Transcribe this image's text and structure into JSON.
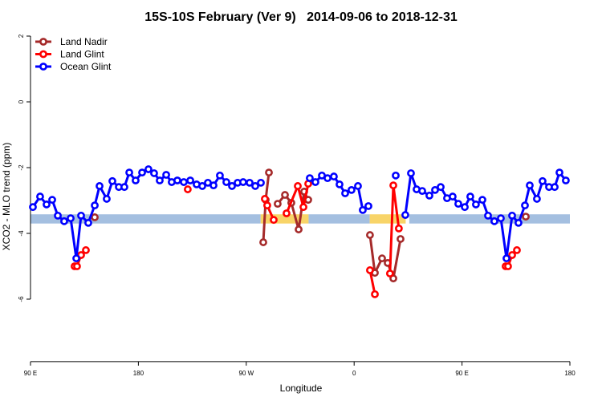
{
  "chart_data": {
    "type": "line",
    "title": "15S-10S February (Ver 9)   2014-09-06 to 2018-12-31",
    "x_label": "Longitude",
    "y_label": "XCO2 - MLO trend (ppm)",
    "xlim": [
      90,
      540
    ],
    "ylim": [
      -7.9,
      2.25
    ],
    "xticks": [
      {
        "value": 90,
        "label": "90 E"
      },
      180,
      {
        "value": 270,
        "label": "90 W"
      },
      {
        "value": 360,
        "label": "0"
      },
      {
        "value": 450,
        "label": "90 E"
      },
      {
        "value": 540,
        "label": "180"
      }
    ],
    "yticks": [
      2,
      0,
      -2,
      -4,
      -6
    ],
    "legend": "top-left",
    "band_y": [
      -3.7,
      -3.42
    ],
    "bands": [
      {
        "from": 90,
        "to": 282,
        "color": "#a4bfe0"
      },
      {
        "from": 282,
        "to": 322,
        "color": "#f8d468"
      },
      {
        "from": 322,
        "to": 373,
        "color": "#a4bfe0"
      },
      {
        "from": 373,
        "to": 403,
        "color": "#f8d468"
      },
      {
        "from": 406,
        "to": 540,
        "color": "#a4bfe0"
      }
    ],
    "series": [
      {
        "name": "Land Nadir",
        "color": "#a52a2a",
        "x": [
          143.6,
          200,
          284.2,
          286.2,
          288.9,
          290,
          296.2,
          302.3,
          307.6,
          313.7,
          318.3,
          321.7,
          330,
          373.2,
          377.3,
          383.3,
          388.0,
          392.7,
          398.7,
          450,
          503.2
        ],
        "values": [
          -3.51,
          null,
          -4.27,
          -2.98,
          -2.15,
          null,
          -3.1,
          -2.83,
          -3.07,
          -3.88,
          -2.73,
          -2.98,
          null,
          -4.05,
          -5.2,
          -4.76,
          -4.9,
          -5.37,
          -4.17,
          null,
          -3.49
        ]
      },
      {
        "name": "Land Glint",
        "color": "#ff0000",
        "x": [
          126.8,
          128.8,
          132.2,
          136.2,
          180,
          221.2,
          250,
          285.5,
          287.5,
          292.9,
          298,
          303.6,
          313.0,
          317.7,
          321.7,
          350,
          373.2,
          377.3,
          383,
          389.9,
          392.7,
          397.3,
          450,
          486.4,
          488.4,
          491.8,
          495.8
        ],
        "values": [
          -5.0,
          -5.0,
          -4.66,
          -4.51,
          null,
          -2.66,
          null,
          -2.95,
          -3.15,
          -3.59,
          null,
          -3.39,
          -2.56,
          -3.2,
          -2.49,
          null,
          -5.12,
          -5.85,
          null,
          -5.22,
          -2.54,
          -3.85,
          null,
          -5.0,
          -5.0,
          -4.66,
          -4.51
        ]
      },
      {
        "name": "Ocean Glint",
        "color": "#0000ff",
        "x": [
          92.0,
          98.0,
          103.4,
          108.1,
          112.8,
          118.1,
          123.5,
          128.2,
          132.2,
          138.2,
          143.6,
          147.6,
          153.6,
          158.3,
          163.7,
          168.3,
          172.4,
          177.7,
          183.1,
          188.4,
          193.1,
          197.8,
          203.2,
          207.8,
          212.5,
          217.9,
          223.3,
          228.6,
          233.3,
          238.0,
          242.7,
          248.0,
          253.4,
          258.1,
          262.8,
          267.4,
          272.8,
          277.5,
          282.2,
          300,
          323.0,
          327.7,
          333.1,
          337.8,
          343.1,
          347.8,
          352.5,
          357.8,
          363.2,
          367.2,
          371.9,
          385,
          394.7,
          400,
          402.7,
          407.4,
          412.1,
          416.8,
          422.8,
          427.5,
          432.2,
          437.5,
          442.2,
          446.9,
          452.3,
          456.9,
          461.6,
          467.0,
          471.7,
          477.0,
          482.4,
          487.1,
          491.8,
          497.1,
          502.5,
          506.5,
          512.5,
          517.2,
          522.6,
          527.3,
          531.3,
          536.6
        ],
        "values": [
          -3.2,
          -2.88,
          -3.12,
          -2.98,
          -3.46,
          -3.63,
          -3.54,
          -4.76,
          -3.46,
          -3.68,
          -3.15,
          -2.56,
          -2.95,
          -2.41,
          -2.59,
          -2.59,
          -2.15,
          -2.39,
          -2.15,
          -2.05,
          -2.17,
          -2.39,
          -2.22,
          -2.44,
          -2.39,
          -2.44,
          -2.39,
          -2.51,
          -2.56,
          -2.46,
          -2.54,
          -2.24,
          -2.44,
          -2.56,
          -2.46,
          -2.44,
          -2.46,
          -2.56,
          -2.46,
          null,
          -2.32,
          -2.44,
          -2.24,
          -2.32,
          -2.27,
          -2.51,
          -2.78,
          -2.68,
          -2.56,
          -3.29,
          -3.17,
          null,
          -2.24,
          null,
          -3.44,
          -2.17,
          -2.66,
          -2.71,
          -2.85,
          -2.68,
          -2.59,
          -2.93,
          -2.88,
          -3.1,
          -3.2,
          -2.88,
          -3.12,
          -2.98,
          -3.46,
          -3.63,
          -3.54,
          -4.76,
          -3.46,
          -3.68,
          -3.15,
          -2.54,
          -2.95,
          -2.41,
          -2.59,
          -2.59,
          -2.15,
          -2.39
        ]
      }
    ]
  }
}
